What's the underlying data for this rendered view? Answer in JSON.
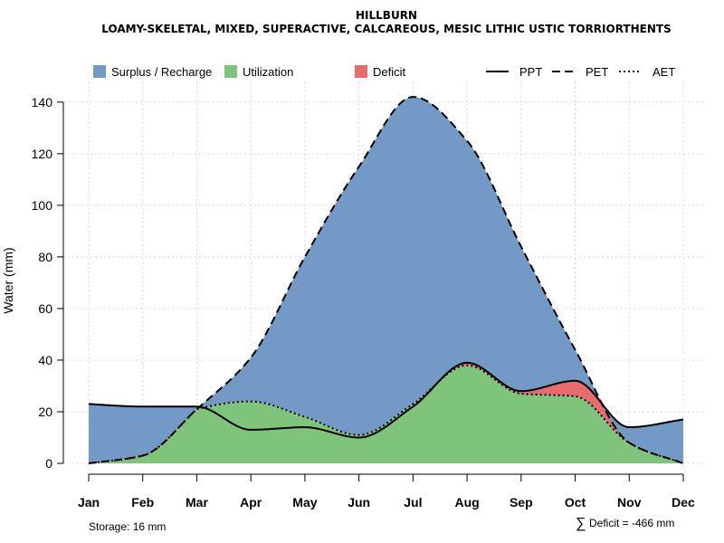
{
  "chart_data": {
    "type": "area",
    "title": "HILLBURN",
    "subtitle": "LOAMY-SKELETAL, MIXED, SUPERACTIVE, CALCAREOUS, MESIC LITHIC USTIC TORRIORTHENTS",
    "xlabel": "",
    "ylabel": "Water (mm)",
    "categories": [
      "Jan",
      "Feb",
      "Mar",
      "Apr",
      "May",
      "Jun",
      "Jul",
      "Aug",
      "Sep",
      "Oct",
      "Nov",
      "Dec"
    ],
    "ylim": [
      0,
      148
    ],
    "yticks": [
      0,
      20,
      40,
      60,
      80,
      100,
      120,
      140
    ],
    "grid": true,
    "series": [
      {
        "name": "PPT",
        "style": "solid",
        "values": [
          23,
          22,
          22,
          13,
          14,
          10,
          22,
          39,
          28,
          32,
          14,
          17
        ]
      },
      {
        "name": "PET",
        "style": "dashed",
        "values": [
          0,
          3,
          21,
          41,
          80,
          115,
          142,
          125,
          84,
          44,
          8,
          0
        ]
      },
      {
        "name": "AET",
        "style": "dotted",
        "values": [
          0,
          3,
          21,
          24,
          18,
          11,
          23,
          38,
          27,
          26,
          8,
          0
        ]
      }
    ],
    "areas": [
      {
        "name": "Surplus / Recharge",
        "color": "#7399c6"
      },
      {
        "name": "Utilization",
        "color": "#7fc47b"
      },
      {
        "name": "Deficit",
        "color": "#e86b6e"
      }
    ],
    "legend": {
      "fills": [
        "Surplus / Recharge",
        "Utilization",
        "Deficit"
      ],
      "lines": [
        "PPT",
        "PET",
        "AET"
      ],
      "placement": "top"
    },
    "notes": {
      "storage": "Storage: 16 mm",
      "deficit_symbol": "∑",
      "deficit": "Deficit = -466 mm"
    }
  }
}
